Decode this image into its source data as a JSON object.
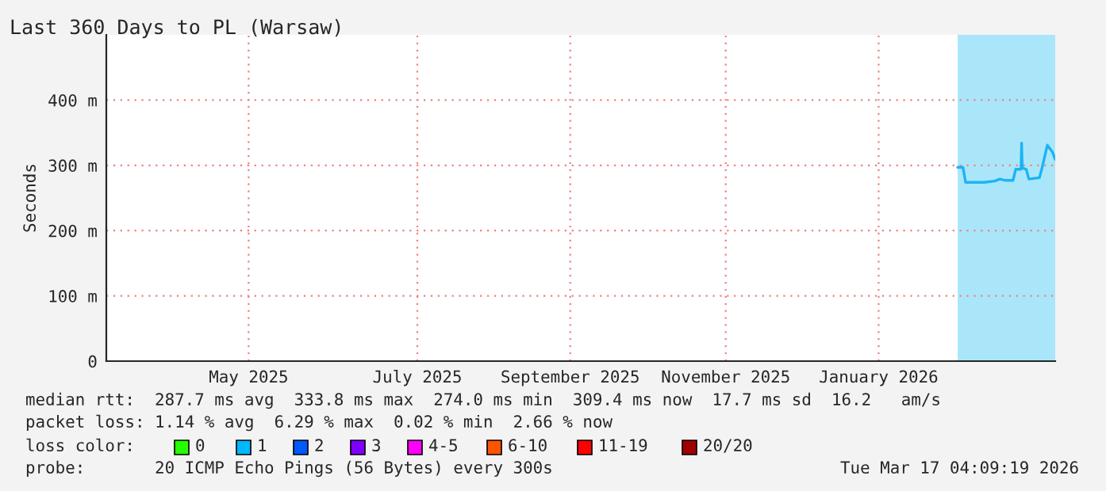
{
  "chart_data": {
    "type": "line",
    "title": "Last 360 Days to PL (Warsaw)",
    "ylabel": "Seconds",
    "x": [
      "2026-02-08",
      "2026-02-10",
      "2026-02-11",
      "2026-02-18",
      "2026-02-22",
      "2026-02-24",
      "2026-02-26",
      "2026-03-01",
      "2026-03-02",
      "2026-03-04",
      "2026-03-04T06:00",
      "2026-03-04T12:00",
      "2026-03-06",
      "2026-03-07",
      "2026-03-11",
      "2026-03-12",
      "2026-03-14",
      "2026-03-16",
      "2026-03-17"
    ],
    "series": [
      {
        "color": "#1ab4f5",
        "values": [
          297,
          297,
          274,
          274,
          276,
          279,
          277,
          277,
          294,
          294,
          334,
          296,
          294,
          279,
          281,
          296,
          331,
          320,
          309
        ]
      }
    ],
    "xlim": [
      "2025-03-22",
      "2026-03-17"
    ],
    "xticks": [
      {
        "value": "2025-05-15",
        "label": "May 2025"
      },
      {
        "value": "2025-07-18",
        "label": "July 2025"
      },
      {
        "value": "2025-09-14",
        "label": "September 2025"
      },
      {
        "value": "2025-11-12",
        "label": "November 2025"
      },
      {
        "value": "2026-01-09",
        "label": "January 2026"
      }
    ],
    "ylim": [
      0,
      500
    ],
    "yticks": [
      0,
      {
        "value": 100,
        "label": "100 m"
      },
      {
        "value": 200,
        "label": "200 m"
      },
      {
        "value": 300,
        "label": "300 m"
      },
      {
        "value": 400,
        "label": "400 m"
      }
    ],
    "bands": [
      {
        "axis": "x",
        "from": "2026-02-08",
        "to": "2026-03-17",
        "color": "#aae6fa"
      }
    ],
    "grid": true,
    "line_style": "solid",
    "legend": false,
    "annotations": [
      "median rtt:  287.7 ms avg  333.8 ms max  274.0 ms min  309.4 ms now  17.7 ms sd  16.2   am/s",
      "packet loss: 1.14 % avg  6.29 % max  0.02 % min  2.66 % now",
      "loss color:",
      "0",
      "1",
      "2",
      "3",
      "4-5",
      "6-10",
      "11-19",
      "20/20",
      "probe:       20 ICMP Echo Pings (56 Bytes) every 300s",
      "Tue Mar 17 04:09:19 2026"
    ]
  }
}
